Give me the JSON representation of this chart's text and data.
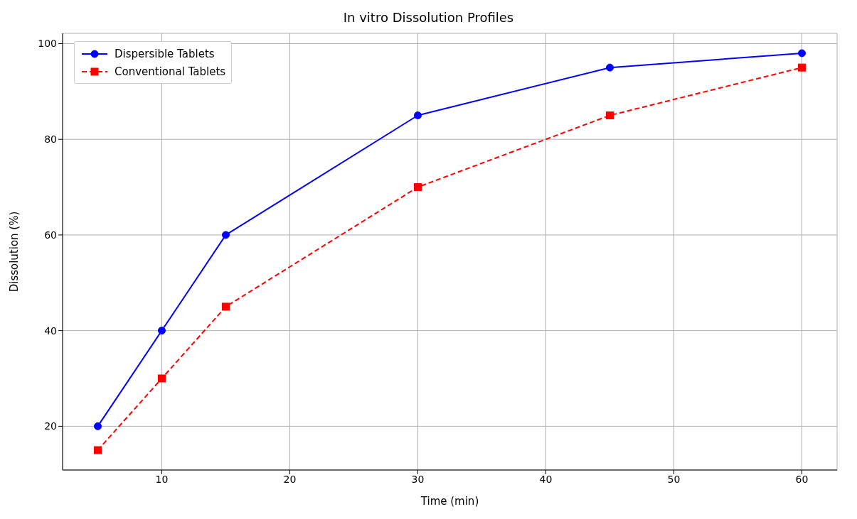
{
  "chart_data": {
    "type": "line",
    "title": "In vitro Dissolution Profiles",
    "xlabel": "Time (min)",
    "ylabel": "Dissolution (%)",
    "x": [
      5,
      10,
      15,
      30,
      45,
      60
    ],
    "series": [
      {
        "name": "Dispersible Tablets",
        "color": "#0000ff",
        "values": [
          20,
          40,
          60,
          85,
          95,
          98
        ],
        "marker": "circle",
        "line_style": "solid"
      },
      {
        "name": "Conventional Tablets",
        "color": "#ff0000",
        "values": [
          15,
          30,
          45,
          70,
          85,
          95
        ],
        "marker": "square",
        "line_style": "dashed"
      }
    ],
    "xlim": [
      2.25,
      62.75
    ],
    "xticks": [
      10,
      20,
      30,
      40,
      50,
      60
    ],
    "ylim": [
      10.85,
      102.15
    ],
    "yticks": [
      20,
      40,
      60,
      80,
      100
    ],
    "grid": true,
    "legend": "top left"
  }
}
